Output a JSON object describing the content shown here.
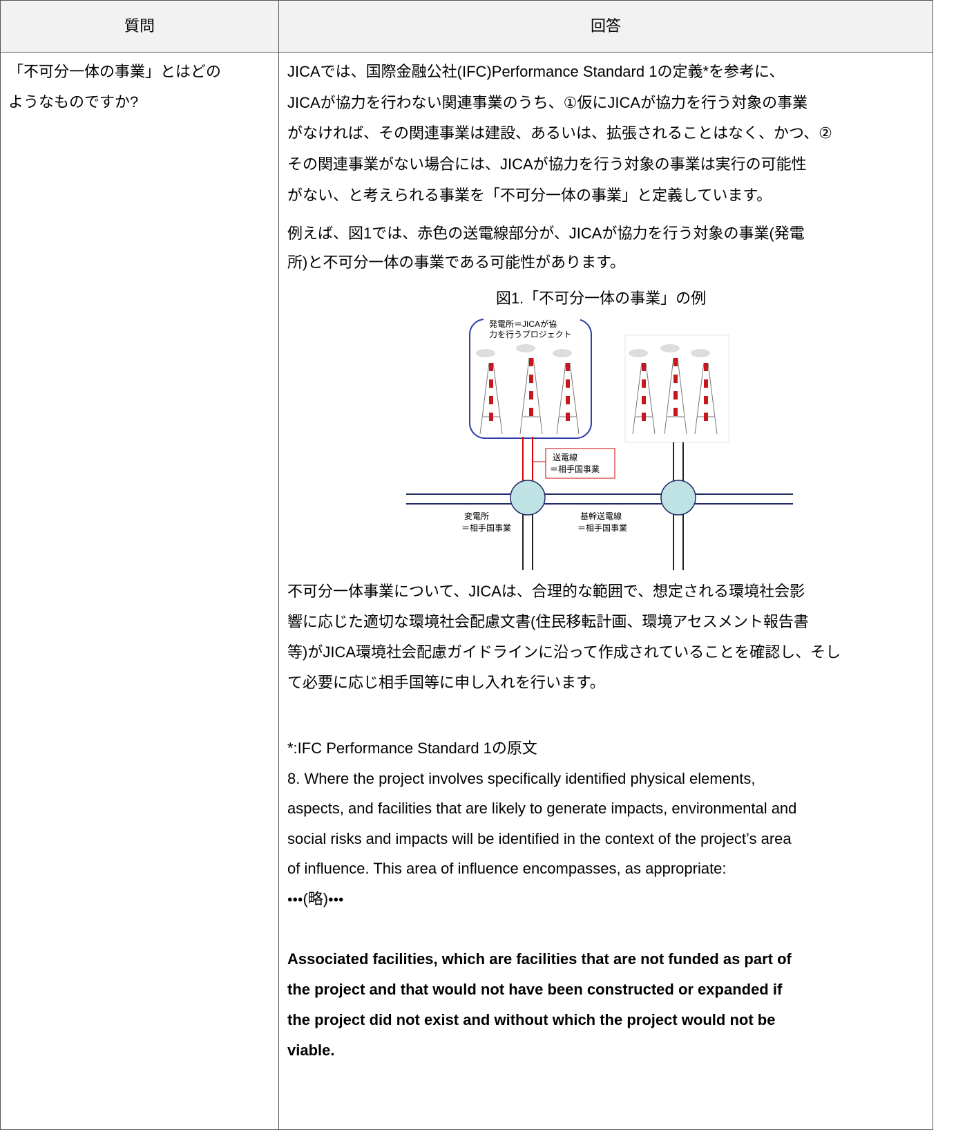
{
  "table": {
    "header": [
      "質問",
      "回答"
    ],
    "rows": [
      {
        "question": [
          "「不可分一体の事業」とはどの",
          "ようなものですか?"
        ],
        "answer": {
          "intro": [
            "JICAでは、国際金融公社(IFC)Performance Standard 1の定義*を参考に、",
            "JICAが協力を行わない関連事業のうち、①仮にJICAが協力を行う対象の事業",
            "がなければ、その関連事業は建設、あるいは、拡張されることはなく、かつ、②",
            "その関連事業がない場合には、JICAが協力を行う対象の事業は実行の可能性",
            "がない、と考えられる事業を「不可分一体の事業」と定義しています。",
            "例えば、図1では、赤色の送電線部分が、JICAが協力を行う対象の事業(発電",
            "所)と不可分一体の事業である可能性があります。"
          ],
          "figure": {
            "caption": "図1.「不可分一体の事業」の例",
            "power_plant": [
              "発電所＝JICAが協",
              "力を行うプロジェクト"
            ],
            "transmission_line": [
              "送電線",
              "＝相手国事業"
            ],
            "substation": [
              "変電所",
              "＝相手国事業"
            ],
            "trunk_line": [
              "基幹送電線",
              "＝相手国事業"
            ]
          },
          "body": [
            "不可分一体事業について、JICAは、合理的な範囲で、想定される環境社会影",
            "響に応じた適切な環境社会配慮文書(住民移転計画、環境アセスメント報告書",
            "等)がJICA環境社会配慮ガイドラインに沿って作成されていることを確認し、そし",
            "て必要に応じ相手国等に申し入れを行います。"
          ],
          "footnote": [
            "*:IFC Performance Standard 1の原文",
            "8. Where the project involves specifically identified physical elements,",
            "aspects, and facilities that are likely to generate impacts, environmental and",
            "social risks and impacts will be identified in the context of the project’s area",
            "of influence. This area of influence encompasses, as appropriate:",
            "・・・(略)・・・"
          ],
          "quote": [
            "Associated facilities, which are facilities that are not funded as part of",
            "the project and that would not have been constructed or expanded if",
            "the project did not exist and without which the project would not be",
            "viable."
          ]
        }
      }
    ]
  }
}
